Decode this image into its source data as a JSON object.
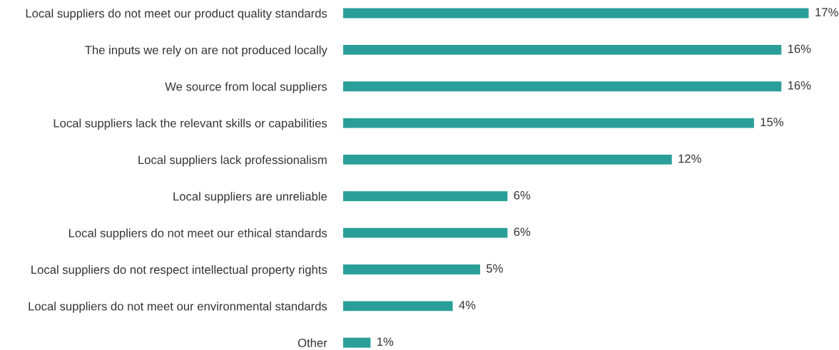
{
  "chart_data": {
    "type": "bar",
    "orientation": "horizontal",
    "categories": [
      "Local suppliers do not meet our product quality standards",
      "The inputs we rely on are not produced locally",
      "We source from local suppliers",
      "Local suppliers lack the relevant skills or capabilities",
      "Local suppliers lack professionalism",
      "Local suppliers are unreliable",
      "Local suppliers do not meet our ethical standards",
      "Local suppliers do not respect intellectual property rights",
      "Local suppliers do not meet our environmental standards",
      "Other"
    ],
    "values": [
      17,
      16,
      16,
      15,
      12,
      6,
      6,
      5,
      4,
      1
    ],
    "value_labels": [
      "17%",
      "16%",
      "16%",
      "15%",
      "12%",
      "6%",
      "6%",
      "5%",
      "4%",
      "1%"
    ],
    "color": "#2a9f99",
    "tick_labels": "y",
    "grid": false,
    "legend": false
  }
}
